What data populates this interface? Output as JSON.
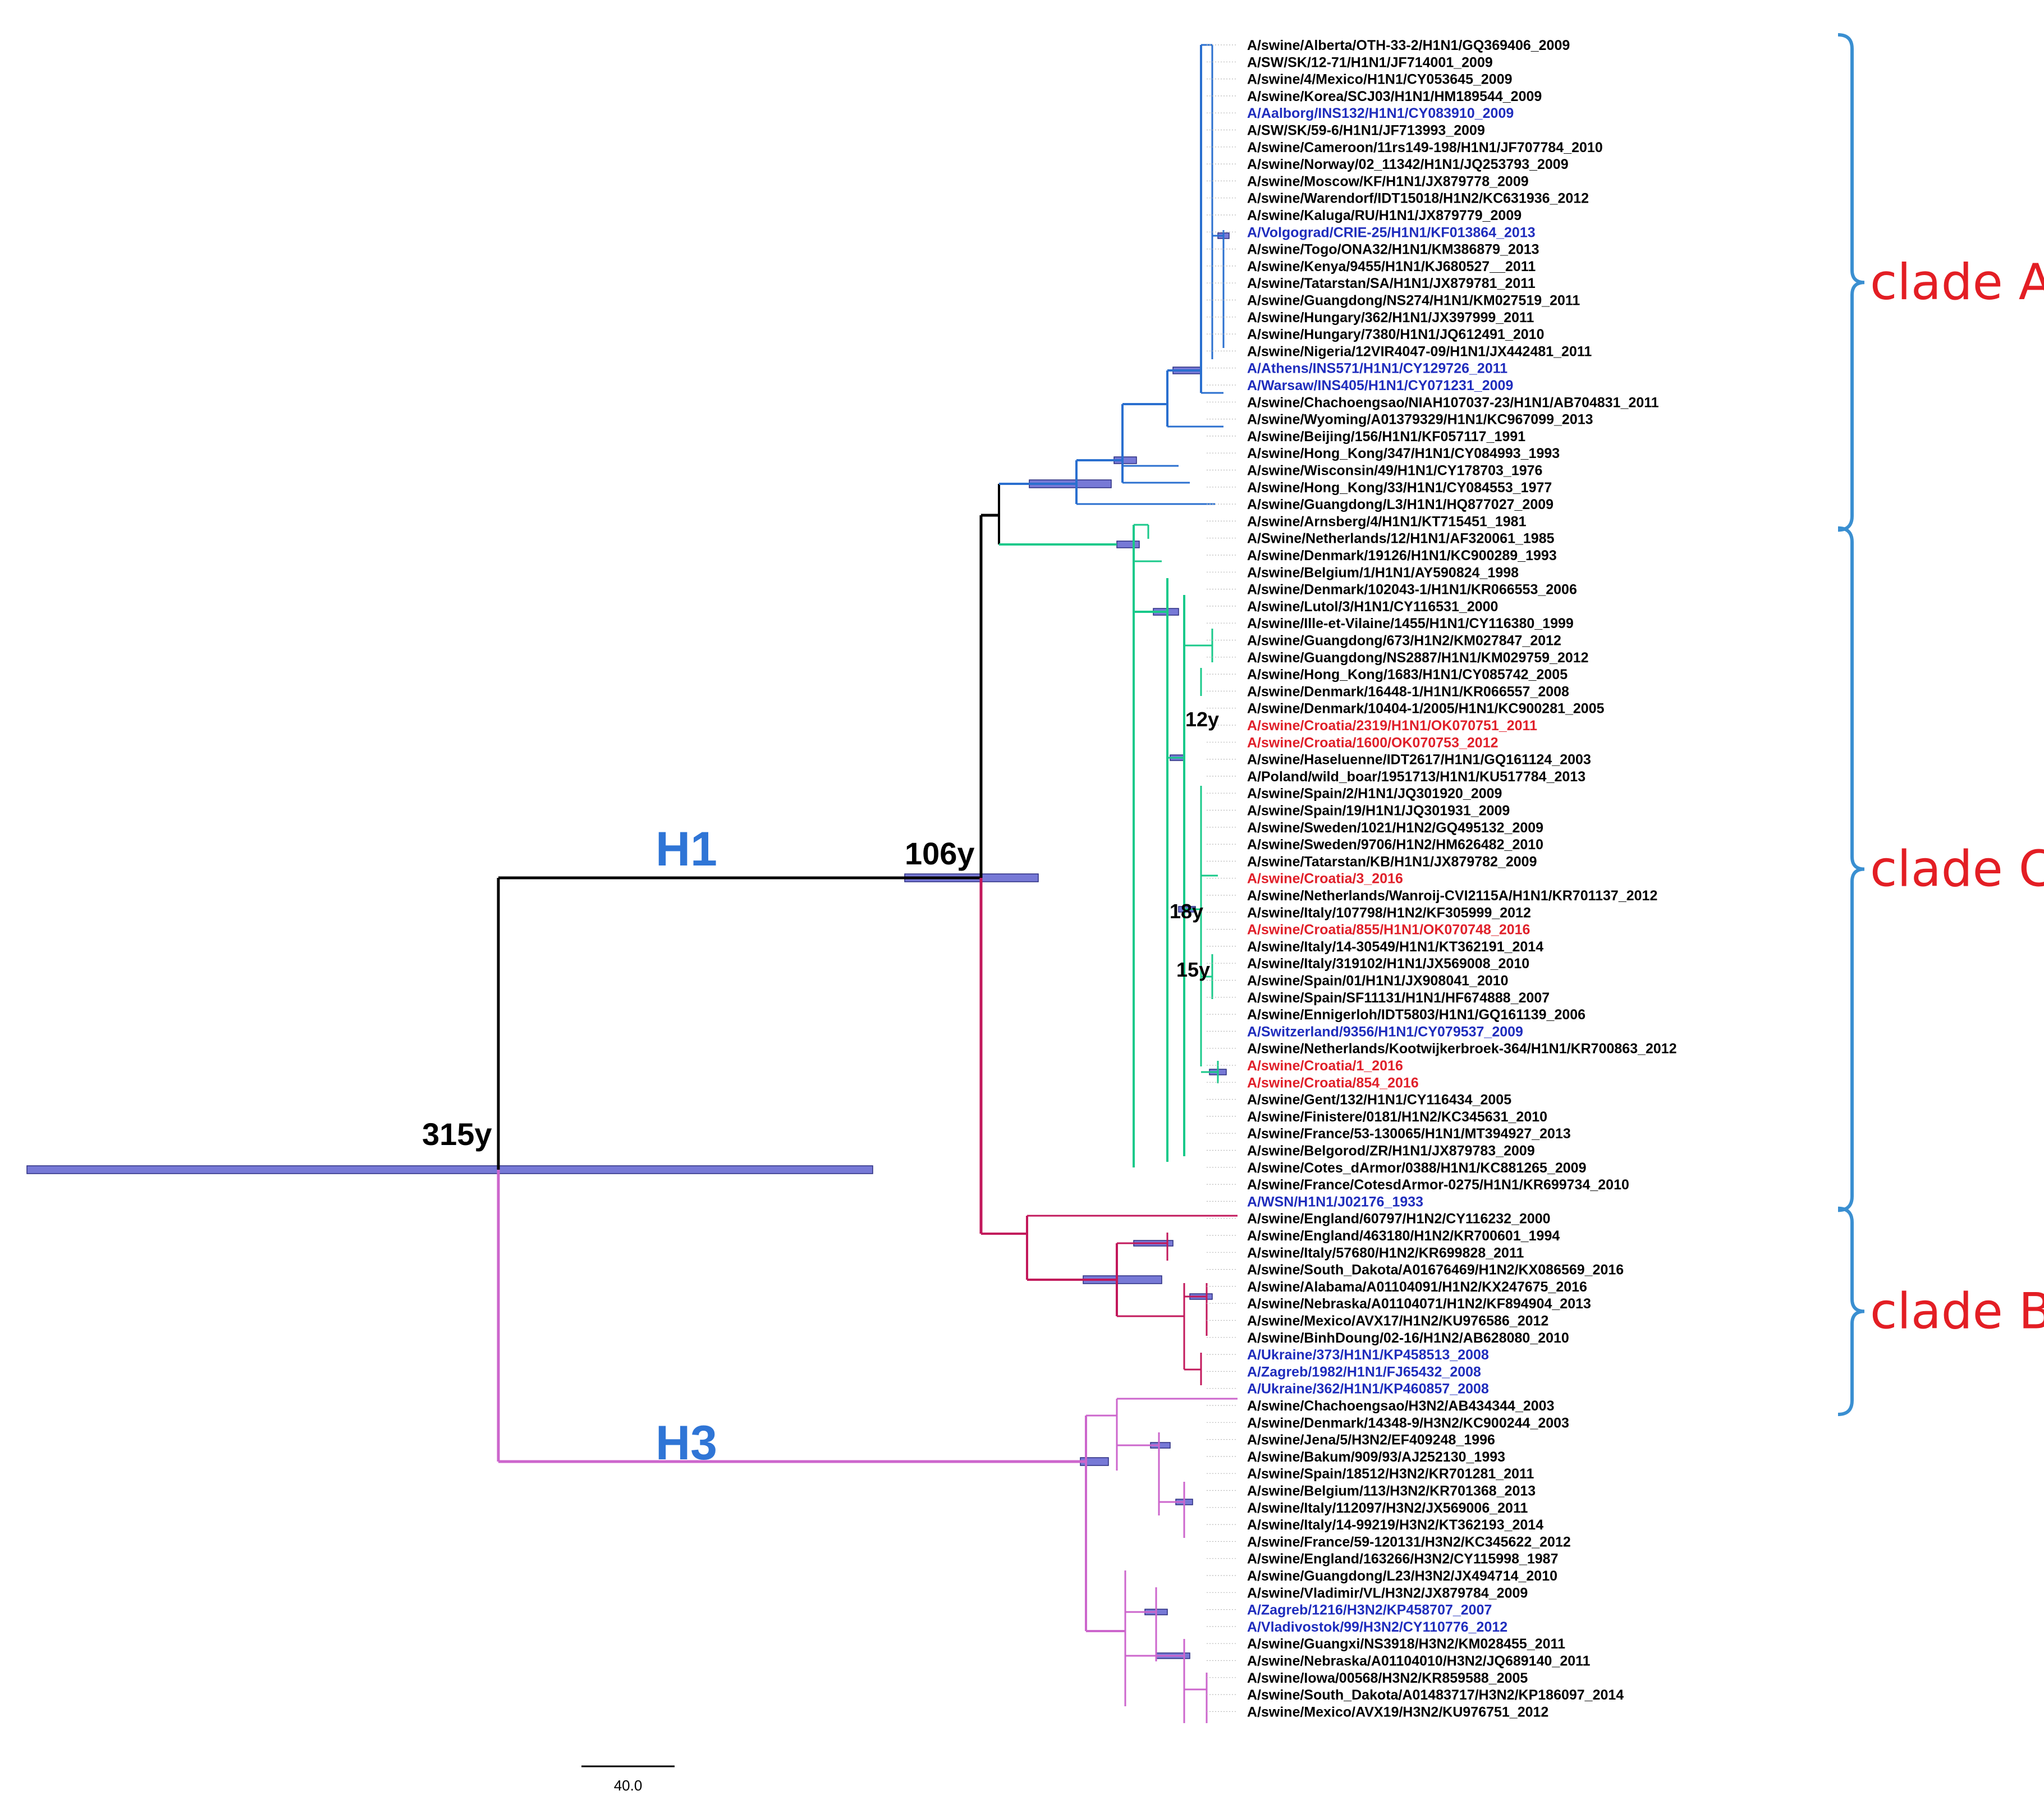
{
  "colors": {
    "black": "#000000",
    "blue_label": "#1f2dbd",
    "red_label": "#e0202a",
    "clade_A_branch": "#2a6fcf",
    "clade_C_branch": "#19c98a",
    "clade_B_branch": "#c2185b",
    "h3_branch": "#cc66cc",
    "hpd_bar": "#7779d6",
    "h_label": "#2f75d6",
    "clade_label": "#e31e24",
    "bracket": "#3a8fd1"
  },
  "labels": {
    "h1": "H1",
    "h3": "H3",
    "root_age": "315y",
    "h1_age": "106y",
    "node_12y": "12y",
    "node_18y": "18y",
    "node_15y": "15y",
    "scale_bar": "40.0"
  },
  "clades": [
    {
      "name": "clade A",
      "first": 0,
      "last": 28
    },
    {
      "name": "clade C",
      "first": 29,
      "last": 68
    },
    {
      "name": "clade B",
      "first": 69,
      "last": 80
    }
  ],
  "leaves": [
    {
      "text": "A/swine/Alberta/OTH-33-2/H1N1/GQ369406_2009",
      "color": "black",
      "group": "A"
    },
    {
      "text": "A/SW/SK/12-71/H1N1/JF714001_2009",
      "color": "black",
      "group": "A"
    },
    {
      "text": "A/swine/4/Mexico/H1N1/CY053645_2009",
      "color": "black",
      "group": "A"
    },
    {
      "text": "A/swine/Korea/SCJ03/H1N1/HM189544_2009",
      "color": "black",
      "group": "A"
    },
    {
      "text": "A/Aalborg/INS132/H1N1/CY083910_2009",
      "color": "blue",
      "group": "A"
    },
    {
      "text": "A/SW/SK/59-6/H1N1/JF713993_2009",
      "color": "black",
      "group": "A"
    },
    {
      "text": "A/swine/Cameroon/11rs149-198/H1N1/JF707784_2010",
      "color": "black",
      "group": "A"
    },
    {
      "text": "A/swine/Norway/02_11342/H1N1/JQ253793_2009",
      "color": "black",
      "group": "A"
    },
    {
      "text": "A/swine/Moscow/KF/H1N1/JX879778_2009",
      "color": "black",
      "group": "A"
    },
    {
      "text": "A/swine/Warendorf/IDT15018/H1N2/KC631936_2012",
      "color": "black",
      "group": "A"
    },
    {
      "text": "A/swine/Kaluga/RU/H1N1/JX879779_2009",
      "color": "black",
      "group": "A"
    },
    {
      "text": "A/Volgograd/CRIE-25/H1N1/KF013864_2013",
      "color": "blue",
      "group": "A"
    },
    {
      "text": "A/swine/Togo/ONA32/H1N1/KM386879_2013",
      "color": "black",
      "group": "A"
    },
    {
      "text": "A/swine/Kenya/9455/H1N1/KJ680527__2011",
      "color": "black",
      "group": "A"
    },
    {
      "text": "A/swine/Tatarstan/SA/H1N1/JX879781_2011",
      "color": "black",
      "group": "A"
    },
    {
      "text": "A/swine/Guangdong/NS274/H1N1/KM027519_2011",
      "color": "black",
      "group": "A"
    },
    {
      "text": "A/swine/Hungary/362/H1N1/JX397999_2011",
      "color": "black",
      "group": "A"
    },
    {
      "text": "A/swine/Hungary/7380/H1N1/JQ612491_2010",
      "color": "black",
      "group": "A"
    },
    {
      "text": "A/swine/Nigeria/12VIR4047-09/H1N1/JX442481_2011",
      "color": "black",
      "group": "A"
    },
    {
      "text": "A/Athens/INS571/H1N1/CY129726_2011",
      "color": "blue",
      "group": "A"
    },
    {
      "text": "A/Warsaw/INS405/H1N1/CY071231_2009",
      "color": "blue",
      "group": "A"
    },
    {
      "text": "A/swine/Chachoengsao/NIAH107037-23/H1N1/AB704831_2011",
      "color": "black",
      "group": "A"
    },
    {
      "text": "A/swine/Wyoming/A01379329/H1N1/KC967099_2013",
      "color": "black",
      "group": "A"
    },
    {
      "text": "A/swine/Beijing/156/H1N1/KF057117_1991",
      "color": "black",
      "group": "A"
    },
    {
      "text": "A/swine/Hong_Kong/347/H1N1/CY084993_1993",
      "color": "black",
      "group": "A"
    },
    {
      "text": "A/swine/Wisconsin/49/H1N1/CY178703_1976",
      "color": "black",
      "group": "A"
    },
    {
      "text": "A/swine/Hong_Kong/33/H1N1/CY084553_1977",
      "color": "black",
      "group": "A"
    },
    {
      "text": "A/swine/Guangdong/L3/H1N1/HQ877027_2009",
      "color": "black",
      "group": "A"
    },
    {
      "text": "A/swine/Arnsberg/4/H1N1/KT715451_1981",
      "color": "black",
      "group": "C"
    },
    {
      "text": "A/Swine/Netherlands/12/H1N1/AF320061_1985",
      "color": "black",
      "group": "C"
    },
    {
      "text": "A/swine/Denmark/19126/H1N1/KC900289_1993",
      "color": "black",
      "group": "C"
    },
    {
      "text": "A/swine/Belgium/1/H1N1/AY590824_1998",
      "color": "black",
      "group": "C"
    },
    {
      "text": "A/swine/Denmark/102043-1/H1N1/KR066553_2006",
      "color": "black",
      "group": "C"
    },
    {
      "text": "A/swine/Lutol/3/H1N1/CY116531_2000",
      "color": "black",
      "group": "C"
    },
    {
      "text": "A/swine/Ille-et-Vilaine/1455/H1N1/CY116380_1999",
      "color": "black",
      "group": "C"
    },
    {
      "text": "A/swine/Guangdong/673/H1N2/KM027847_2012",
      "color": "black",
      "group": "C"
    },
    {
      "text": "A/swine/Guangdong/NS2887/H1N1/KM029759_2012",
      "color": "black",
      "group": "C"
    },
    {
      "text": "A/swine/Hong_Kong/1683/H1N1/CY085742_2005",
      "color": "black",
      "group": "C"
    },
    {
      "text": "A/swine/Denmark/16448-1/H1N1/KR066557_2008",
      "color": "black",
      "group": "C"
    },
    {
      "text": "A/swine/Denmark/10404-1/2005/H1N1/KC900281_2005",
      "color": "black",
      "group": "C"
    },
    {
      "text": "A/swine/Croatia/2319/H1N1/OK070751_2011",
      "color": "red",
      "group": "C"
    },
    {
      "text": "A/swine/Croatia/1600/OK070753_2012",
      "color": "red",
      "group": "C"
    },
    {
      "text": "A/swine/Haseluenne/IDT2617/H1N1/GQ161124_2003",
      "color": "black",
      "group": "C"
    },
    {
      "text": "A/Poland/wild_boar/1951713/H1N1/KU517784_2013",
      "color": "black",
      "group": "C"
    },
    {
      "text": "A/swine/Spain/2/H1N1/JQ301920_2009",
      "color": "black",
      "group": "C"
    },
    {
      "text": "A/swine/Spain/19/H1N1/JQ301931_2009",
      "color": "black",
      "group": "C"
    },
    {
      "text": "A/swine/Sweden/1021/H1N2/GQ495132_2009",
      "color": "black",
      "group": "C"
    },
    {
      "text": "A/swine/Sweden/9706/H1N2/HM626482_2010",
      "color": "black",
      "group": "C"
    },
    {
      "text": "A/swine/Tatarstan/KB/H1N1/JX879782_2009",
      "color": "black",
      "group": "C"
    },
    {
      "text": "A/swine/Croatia/3_2016",
      "color": "red",
      "group": "C"
    },
    {
      "text": "A/swine/Netherlands/Wanroij-CVI2115A/H1N1/KR701137_2012",
      "color": "black",
      "group": "C"
    },
    {
      "text": "A/swine/Italy/107798/H1N2/KF305999_2012",
      "color": "black",
      "group": "C"
    },
    {
      "text": "A/swine/Croatia/855/H1N1/OK070748_2016",
      "color": "red",
      "group": "C"
    },
    {
      "text": "A/swine/Italy/14-30549/H1N1/KT362191_2014",
      "color": "black",
      "group": "C"
    },
    {
      "text": "A/swine/Italy/319102/H1N1/JX569008_2010",
      "color": "black",
      "group": "C"
    },
    {
      "text": "A/swine/Spain/01/H1N1/JX908041_2010",
      "color": "black",
      "group": "C"
    },
    {
      "text": "A/swine/Spain/SF11131/H1N1/HF674888_2007",
      "color": "black",
      "group": "C"
    },
    {
      "text": "A/swine/Ennigerloh/IDT5803/H1N1/GQ161139_2006",
      "color": "black",
      "group": "C"
    },
    {
      "text": "A/Switzerland/9356/H1N1/CY079537_2009",
      "color": "blue",
      "group": "C"
    },
    {
      "text": "A/swine/Netherlands/Kootwijkerbroek-364/H1N1/KR700863_2012",
      "color": "black",
      "group": "C"
    },
    {
      "text": "A/swine/Croatia/1_2016",
      "color": "red",
      "group": "C"
    },
    {
      "text": "A/swine/Croatia/854_2016",
      "color": "red",
      "group": "C"
    },
    {
      "text": "A/swine/Gent/132/H1N1/CY116434_2005",
      "color": "black",
      "group": "C"
    },
    {
      "text": "A/swine/Finistere/0181/H1N2/KC345631_2010",
      "color": "black",
      "group": "C"
    },
    {
      "text": "A/swine/France/53-130065/H1N1/MT394927_2013",
      "color": "black",
      "group": "C"
    },
    {
      "text": "A/swine/Belgorod/ZR/H1N1/JX879783_2009",
      "color": "black",
      "group": "C"
    },
    {
      "text": "A/swine/Cotes_dArmor/0388/H1N1/KC881265_2009",
      "color": "black",
      "group": "C"
    },
    {
      "text": "A/swine/France/CotesdArmor-0275/H1N1/KR699734_2010",
      "color": "black",
      "group": "C"
    },
    {
      "text": "A/WSN/H1N1/J02176_1933",
      "color": "blue",
      "group": "B"
    },
    {
      "text": "A/swine/England/60797/H1N2/CY116232_2000",
      "color": "black",
      "group": "B"
    },
    {
      "text": "A/swine/England/463180/H1N2/KR700601_1994",
      "color": "black",
      "group": "B"
    },
    {
      "text": "A/swine/Italy/57680/H1N2/KR699828_2011",
      "color": "black",
      "group": "B"
    },
    {
      "text": "A/swine/South_Dakota/A01676469/H1N2/KX086569_2016",
      "color": "black",
      "group": "B"
    },
    {
      "text": "A/swine/Alabama/A01104091/H1N2/KX247675_2016",
      "color": "black",
      "group": "B"
    },
    {
      "text": "A/swine/Nebraska/A01104071/H1N2/KF894904_2013",
      "color": "black",
      "group": "B"
    },
    {
      "text": "A/swine/Mexico/AVX17/H1N2/KU976586_2012",
      "color": "black",
      "group": "B"
    },
    {
      "text": "A/swine/BinhDoung/02-16/H1N2/AB628080_2010",
      "color": "black",
      "group": "B"
    },
    {
      "text": "A/Ukraine/373/H1N1/KP458513_2008",
      "color": "blue",
      "group": "B"
    },
    {
      "text": "A/Zagreb/1982/H1N1/FJ65432_2008",
      "color": "blue",
      "group": "B"
    },
    {
      "text": "A/Ukraine/362/H1N1/KP460857_2008",
      "color": "blue",
      "group": "B"
    },
    {
      "text": "A/swine/Chachoengsao/H3N2/AB434344_2003",
      "color": "black",
      "group": "H3"
    },
    {
      "text": "A/swine/Denmark/14348-9/H3N2/KC900244_2003",
      "color": "black",
      "group": "H3"
    },
    {
      "text": "A/swine/Jena/5/H3N2/EF409248_1996",
      "color": "black",
      "group": "H3"
    },
    {
      "text": "A/swine/Bakum/909/93/AJ252130_1993",
      "color": "black",
      "group": "H3"
    },
    {
      "text": "A/swine/Spain/18512/H3N2/KR701281_2011",
      "color": "black",
      "group": "H3"
    },
    {
      "text": "A/swine/Belgium/113/H3N2/KR701368_2013",
      "color": "black",
      "group": "H3"
    },
    {
      "text": "A/swine/Italy/112097/H3N2/JX569006_2011",
      "color": "black",
      "group": "H3"
    },
    {
      "text": "A/swine/Italy/14-99219/H3N2/KT362193_2014",
      "color": "black",
      "group": "H3"
    },
    {
      "text": "A/swine/France/59-120131/H3N2/KC345622_2012",
      "color": "black",
      "group": "H3"
    },
    {
      "text": "A/swine/England/163266/H3N2/CY115998_1987",
      "color": "black",
      "group": "H3"
    },
    {
      "text": "A/swine/Guangdong/L23/H3N2/JX494714_2010",
      "color": "black",
      "group": "H3"
    },
    {
      "text": "A/swine/Vladimir/VL/H3N2/JX879784_2009",
      "color": "black",
      "group": "H3"
    },
    {
      "text": "A/Zagreb/1216/H3N2/KP458707_2007",
      "color": "blue",
      "group": "H3"
    },
    {
      "text": "A/Vladivostok/99/H3N2/CY110776_2012",
      "color": "blue",
      "group": "H3"
    },
    {
      "text": "A/swine/Guangxi/NS3918/H3N2/KM028455_2011",
      "color": "black",
      "group": "H3"
    },
    {
      "text": "A/swine/Nebraska/A01104010/H3N2/JQ689140_2011",
      "color": "black",
      "group": "H3"
    },
    {
      "text": "A/swine/Iowa/00568/H3N2/KR859588_2005",
      "color": "black",
      "group": "H3"
    },
    {
      "text": "A/swine/South_Dakota/A01483717/H3N2/KP186097_2014",
      "color": "black",
      "group": "H3"
    },
    {
      "text": "A/swine/Mexico/AVX19/H3N2/KU976751_2012",
      "color": "black",
      "group": "H3"
    }
  ]
}
